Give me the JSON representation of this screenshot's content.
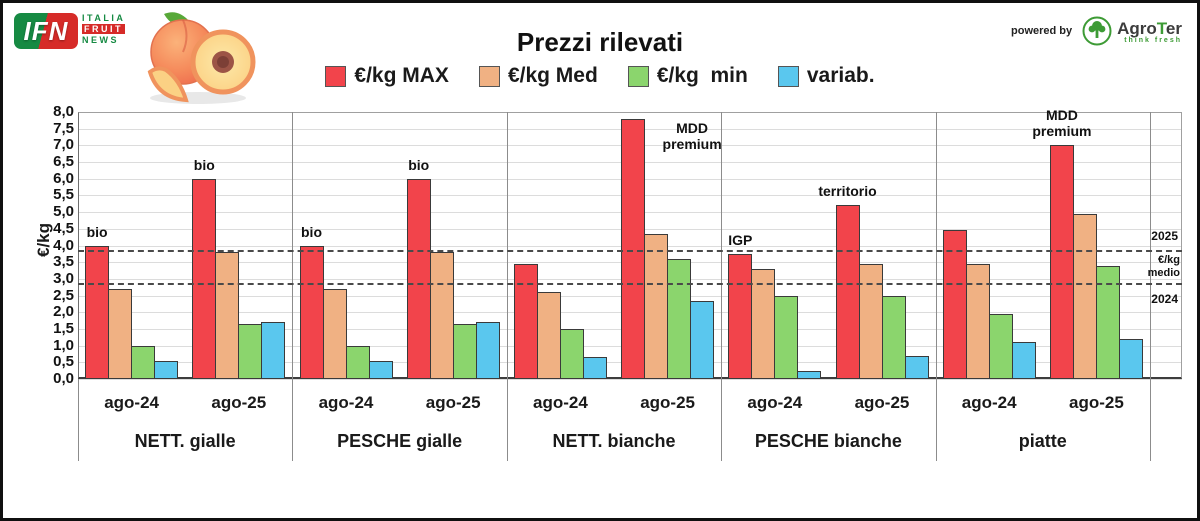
{
  "header": {
    "logo_ifn": {
      "abbr": "IFN",
      "line1": "ITALIA",
      "line2": "FRUIT",
      "line3": "NEWS"
    },
    "title": "Prezzi rilevati",
    "powered_by": "powered by",
    "agroter": {
      "part1": "Agro",
      "accent": "T",
      "part2": "er",
      "tagline": "think fresh"
    }
  },
  "chart_data": {
    "type": "bar",
    "title": "Prezzi rilevati",
    "ylabel": "€/kg",
    "ylim": [
      0,
      8
    ],
    "ytick_step": 0.5,
    "yticks": [
      "8,0",
      "7,5",
      "7,0",
      "6,5",
      "6,0",
      "5,5",
      "5,0",
      "4,5",
      "4,0",
      "3,5",
      "3,0",
      "2,5",
      "2,0",
      "1,5",
      "1,0",
      "0,5",
      "0,0"
    ],
    "grid": true,
    "legend_position": "top",
    "series": [
      {
        "key": "max",
        "name": "€/kg MAX",
        "color": "#f2444b"
      },
      {
        "key": "med",
        "name": "€/kg Med",
        "color": "#f0b183"
      },
      {
        "key": "min",
        "name": "€/kg  min",
        "color": "#8bd56d"
      },
      {
        "key": "variab",
        "name": "variab.",
        "color": "#5ac7ee"
      }
    ],
    "groups": [
      {
        "label": "NETT. gialle",
        "clusters": [
          {
            "label": "ago-24",
            "annotation": "bio",
            "values": [
              4.0,
              2.7,
              1.0,
              0.55
            ]
          },
          {
            "label": "ago-25",
            "annotation": "bio",
            "values": [
              6.0,
              3.8,
              1.65,
              1.7
            ]
          }
        ]
      },
      {
        "label": "PESCHE gialle",
        "clusters": [
          {
            "label": "ago-24",
            "annotation": "bio",
            "values": [
              4.0,
              2.7,
              1.0,
              0.55
            ]
          },
          {
            "label": "ago-25",
            "annotation": "bio",
            "values": [
              6.0,
              3.8,
              1.65,
              1.7
            ]
          }
        ]
      },
      {
        "label": "NETT. bianche",
        "clusters": [
          {
            "label": "ago-24",
            "annotation": "",
            "values": [
              3.45,
              2.6,
              1.5,
              0.65
            ]
          },
          {
            "label": "ago-25",
            "annotation": "MDD premium",
            "values": [
              7.8,
              4.35,
              3.6,
              2.35
            ]
          }
        ]
      },
      {
        "label": "PESCHE bianche",
        "clusters": [
          {
            "label": "ago-24",
            "annotation": "IGP",
            "values": [
              3.75,
              3.3,
              2.5,
              0.25
            ]
          },
          {
            "label": "ago-25",
            "annotation": "territorio",
            "values": [
              5.2,
              3.45,
              2.5,
              0.7
            ]
          }
        ]
      },
      {
        "label": "piatte",
        "clusters": [
          {
            "label": "ago-24",
            "annotation": "",
            "values": [
              4.45,
              3.45,
              1.95,
              1.1
            ]
          },
          {
            "label": "ago-25",
            "annotation": "MDD premium",
            "values": [
              7.0,
              4.95,
              3.4,
              1.2
            ]
          }
        ]
      }
    ],
    "reference_lines": [
      {
        "label": "2025",
        "value": 3.85
      },
      {
        "label": "2024",
        "value": 2.85
      }
    ],
    "reference_caption": "€/kg medio"
  }
}
